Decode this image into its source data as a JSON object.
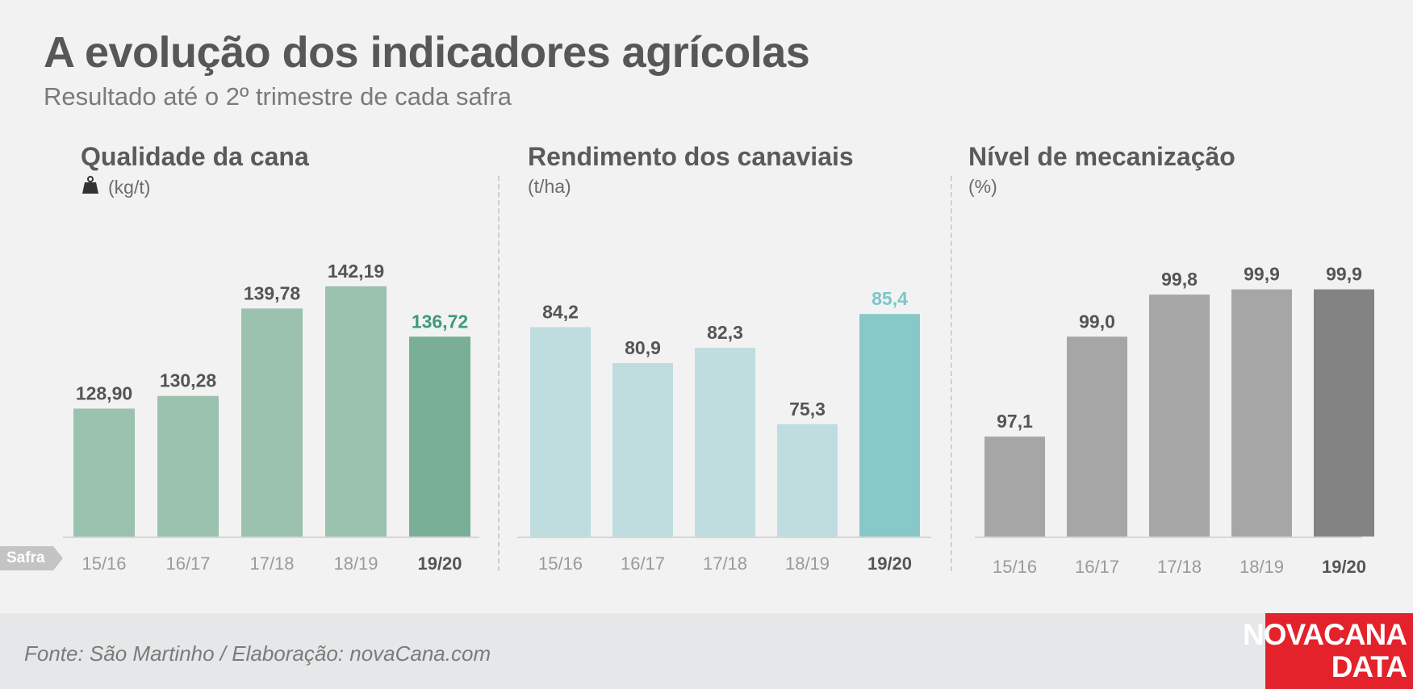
{
  "header": {
    "title": "A evolução dos indicadores agrícolas",
    "subtitle": "Resultado até o 2º trimestre de cada safra"
  },
  "x_axis_tag": "Safra",
  "chart_data": [
    {
      "type": "bar",
      "title": "Qualidade da cana",
      "unit": "(kg/t)",
      "icon": "weight-icon",
      "categories": [
        "15/16",
        "16/17",
        "17/18",
        "18/19",
        "19/20"
      ],
      "values": [
        128.9,
        130.28,
        139.78,
        142.19,
        136.72
      ],
      "value_labels": [
        "128,90",
        "130,28",
        "139,78",
        "142,19",
        "136,72"
      ],
      "colors": [
        "#9bc1af",
        "#9bc1af",
        "#9bc1af",
        "#9bc1af",
        "#79af97"
      ],
      "label_colors": [
        "#555555",
        "#555555",
        "#555555",
        "#555555",
        "#3f9a78"
      ],
      "ylim": [
        115,
        147
      ]
    },
    {
      "type": "bar",
      "title": "Rendimento dos canaviais",
      "unit": "(t/ha)",
      "categories": [
        "15/16",
        "16/17",
        "17/18",
        "18/19",
        "19/20"
      ],
      "values": [
        84.2,
        80.9,
        82.3,
        75.3,
        85.4
      ],
      "value_labels": [
        "84,2",
        "80,9",
        "82,3",
        "75,3",
        "85,4"
      ],
      "colors": [
        "#bfdcde",
        "#bfdcde",
        "#bfdcde",
        "#bfdcde",
        "#87c8c9"
      ],
      "label_colors": [
        "#555555",
        "#555555",
        "#555555",
        "#555555",
        "#7cc6c8"
      ],
      "ylim": [
        65,
        92
      ]
    },
    {
      "type": "bar",
      "title": "Nível de mecanização",
      "unit": "(%)",
      "categories": [
        "15/16",
        "16/17",
        "17/18",
        "18/19",
        "19/20"
      ],
      "values": [
        97.1,
        99.0,
        99.8,
        99.9,
        99.9
      ],
      "value_labels": [
        "97,1",
        "99,0",
        "99,8",
        "99,9",
        "99,9"
      ],
      "colors": [
        "#a7a6a7",
        "#a7a6a7",
        "#a7a6a7",
        "#a7a6a7",
        "#828382"
      ],
      "label_colors": [
        "#555555",
        "#555555",
        "#555555",
        "#555555",
        "#555555"
      ],
      "ylim": [
        95.2,
        100.8
      ]
    }
  ],
  "footer": {
    "source": "Fonte: São Martinho / Elaboração: novaCana.com",
    "brand_line1": "NOVACANA",
    "brand_line2": "DATA"
  },
  "colors": {
    "background": "#f2f2f2",
    "footer_bg": "#e6e7e8",
    "brand_red": "#e3222b",
    "axis_line": "#d6d6d6",
    "category_label": "#9a9a9a",
    "category_label_last": "#555555"
  }
}
